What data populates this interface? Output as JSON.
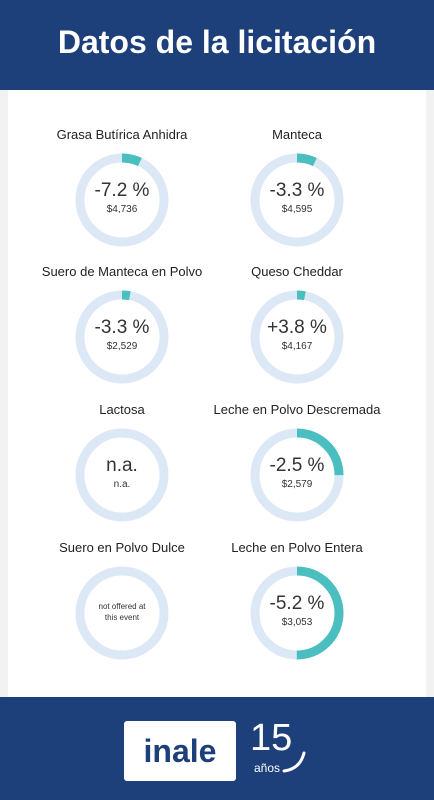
{
  "header": {
    "title": "Datos de la licitación"
  },
  "items": [
    {
      "label": "Grasa Butírica Anhidra",
      "change": "-7.2 %",
      "price": "$4,736",
      "share": 7
    },
    {
      "label": "Manteca",
      "change": "-3.3 %",
      "price": "$4,595",
      "share": 7
    },
    {
      "label": "Suero de Manteca en Polvo",
      "change": "-3.3 %",
      "price": "$2,529",
      "share": 3
    },
    {
      "label": "Queso Cheddar",
      "change": "+3.8 %",
      "price": "$4,167",
      "share": 3
    },
    {
      "label": "Lactosa",
      "change": "n.a.",
      "price": "n.a."
    },
    {
      "label": "Leche en Polvo Descremada",
      "change": "-2.5 %",
      "price": "$2,579",
      "share": 25
    },
    {
      "label": "Suero en Polvo Dulce",
      "note": "not offered at this event"
    },
    {
      "label": "Leche en Polvo Entera",
      "change": "-5.2 %",
      "price": "$3,053",
      "share": 50
    }
  ],
  "footer": {
    "logo": "inale",
    "years": "15",
    "years_word": "años"
  }
}
